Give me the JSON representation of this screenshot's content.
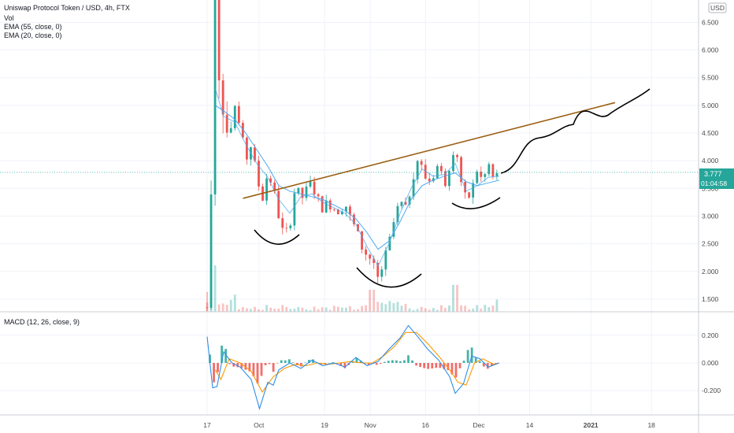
{
  "header": {
    "title": "Uniswap Protocol Token / USD, 4h, FTX",
    "indicators": [
      "Vol",
      "EMA (55, close, 0)",
      "EMA (20, close, 0)"
    ],
    "currency": "USD"
  },
  "macd_panel": {
    "label": "MACD (12, 26, close, 9)"
  },
  "price_badge": {
    "price": "3.777",
    "countdown": "01:04:58"
  },
  "colors": {
    "up": "#26a69a",
    "down": "#ef5350",
    "ema": "#4aa8f0",
    "trendline": "#9a5f12",
    "drawing": "#000000",
    "macd": "#2f8ee8",
    "signal": "#ff9800",
    "badge": "#26a69a",
    "grid": "#f0f3fa"
  },
  "chart_data": [
    {
      "type": "line",
      "title": "Uniswap Protocol Token / USD, 4h, FTX",
      "x_ticks": [
        "17",
        "Oct",
        "19",
        "Nov",
        "16",
        "Dec",
        "14",
        "2021",
        "18"
      ],
      "y_ticks": [
        "1.500",
        "2.000",
        "2.500",
        "3.000",
        "3.500",
        "4.000",
        "4.500",
        "5.000",
        "5.500",
        "6.000",
        "6.500"
      ],
      "ylim": [
        1.3,
        6.9
      ],
      "grid": true,
      "last_price": 3.777,
      "price_path": [
        [
          0,
          1.35
        ],
        [
          0.5,
          2.6
        ],
        [
          1,
          4.5
        ],
        [
          1.4,
          6.9
        ],
        [
          2,
          5.8
        ],
        [
          3,
          4.7
        ],
        [
          4,
          4.3
        ],
        [
          5,
          4.9
        ],
        [
          6,
          4.6
        ],
        [
          7,
          4.0
        ],
        [
          8,
          4.3
        ],
        [
          9,
          3.7
        ],
        [
          10,
          3.3
        ],
        [
          11,
          3.8
        ],
        [
          12,
          3.5
        ],
        [
          13,
          3.0
        ],
        [
          14,
          2.6
        ],
        [
          15,
          2.85
        ],
        [
          16,
          3.55
        ],
        [
          17,
          3.3
        ],
        [
          18,
          3.45
        ],
        [
          19,
          3.6
        ],
        [
          20,
          3.3
        ],
        [
          21,
          3.15
        ],
        [
          22,
          3.25
        ],
        [
          23,
          3.15
        ],
        [
          24,
          3.1
        ],
        [
          25,
          3.25
        ],
        [
          26,
          2.95
        ],
        [
          27,
          2.75
        ],
        [
          28,
          2.45
        ],
        [
          29,
          2.3
        ],
        [
          30,
          2.2
        ],
        [
          31,
          1.85
        ],
        [
          32,
          2.15
        ],
        [
          33,
          2.5
        ],
        [
          34,
          2.95
        ],
        [
          35,
          3.25
        ],
        [
          36,
          3.1
        ],
        [
          37,
          3.55
        ],
        [
          38,
          4.05
        ],
        [
          39,
          3.85
        ],
        [
          40,
          3.6
        ],
        [
          41,
          3.75
        ],
        [
          42,
          3.95
        ],
        [
          43,
          3.55
        ],
        [
          44,
          3.95
        ],
        [
          45,
          4.35
        ],
        [
          46,
          3.65
        ],
        [
          47,
          3.25
        ],
        [
          48,
          3.45
        ],
        [
          49,
          3.85
        ],
        [
          50,
          3.6
        ],
        [
          51,
          3.95
        ],
        [
          52,
          3.65
        ],
        [
          53,
          3.78
        ]
      ],
      "ema55_path": [
        [
          1.5,
          5.0
        ],
        [
          3,
          4.9
        ],
        [
          5,
          4.75
        ],
        [
          7,
          4.5
        ],
        [
          9,
          4.2
        ],
        [
          11,
          3.9
        ],
        [
          13,
          3.55
        ],
        [
          15,
          3.45
        ],
        [
          17,
          3.4
        ],
        [
          19,
          3.35
        ],
        [
          21,
          3.3
        ],
        [
          23,
          3.2
        ],
        [
          25,
          3.1
        ],
        [
          27,
          2.95
        ],
        [
          29,
          2.7
        ],
        [
          31,
          2.4
        ],
        [
          33,
          2.55
        ],
        [
          35,
          2.9
        ],
        [
          37,
          3.3
        ],
        [
          39,
          3.55
        ],
        [
          41,
          3.65
        ],
        [
          43,
          3.72
        ],
        [
          45,
          3.78
        ],
        [
          47,
          3.62
        ],
        [
          49,
          3.55
        ],
        [
          51,
          3.6
        ],
        [
          53,
          3.65
        ]
      ],
      "ema20_path": [
        [
          1.5,
          5.3
        ],
        [
          3,
          4.8
        ],
        [
          5,
          4.7
        ],
        [
          7,
          4.3
        ],
        [
          9,
          3.95
        ],
        [
          11,
          3.7
        ],
        [
          13,
          3.3
        ],
        [
          15,
          3.05
        ],
        [
          17,
          3.35
        ],
        [
          19,
          3.4
        ],
        [
          21,
          3.25
        ],
        [
          23,
          3.15
        ],
        [
          25,
          3.05
        ],
        [
          27,
          2.85
        ],
        [
          29,
          2.45
        ],
        [
          31,
          2.1
        ],
        [
          33,
          2.5
        ],
        [
          35,
          3.05
        ],
        [
          37,
          3.5
        ],
        [
          39,
          3.85
        ],
        [
          41,
          3.72
        ],
        [
          43,
          3.75
        ],
        [
          45,
          3.95
        ],
        [
          47,
          3.45
        ],
        [
          49,
          3.55
        ],
        [
          51,
          3.7
        ],
        [
          53,
          3.72
        ]
      ],
      "trendline": [
        [
          6.5,
          3.32
        ],
        [
          74,
          5.05
        ]
      ],
      "volume_spikes": [
        [
          1.2,
          0.95
        ],
        [
          5,
          0.35
        ],
        [
          30,
          0.45
        ],
        [
          45,
          0.55
        ],
        [
          53,
          0.25
        ]
      ]
    },
    {
      "type": "line",
      "title": "MACD (12, 26, close, 9)",
      "y_ticks": [
        "0.200",
        "0.000",
        "-0.200"
      ],
      "ylim": [
        -0.36,
        0.34
      ],
      "macd_path": [
        [
          0,
          0.19
        ],
        [
          1,
          -0.18
        ],
        [
          1.8,
          -0.17
        ],
        [
          3,
          0.08
        ],
        [
          4.5,
          0.0
        ],
        [
          6,
          -0.03
        ],
        [
          8,
          -0.12
        ],
        [
          9.5,
          -0.33
        ],
        [
          11,
          -0.14
        ],
        [
          12,
          -0.16
        ],
        [
          13,
          -0.05
        ],
        [
          15,
          0.0
        ],
        [
          17,
          -0.04
        ],
        [
          19,
          0.02
        ],
        [
          21,
          -0.02
        ],
        [
          23,
          0.0
        ],
        [
          25,
          -0.03
        ],
        [
          27,
          0.04
        ],
        [
          29,
          -0.02
        ],
        [
          31,
          0.01
        ],
        [
          33,
          0.1
        ],
        [
          35,
          0.18
        ],
        [
          36.5,
          0.27
        ],
        [
          38,
          0.2
        ],
        [
          40,
          0.1
        ],
        [
          42,
          0.02
        ],
        [
          44,
          -0.1
        ],
        [
          45,
          -0.22
        ],
        [
          46.5,
          -0.15
        ],
        [
          48,
          0.05
        ],
        [
          49.5,
          0.03
        ],
        [
          51,
          -0.03
        ],
        [
          53,
          0.0
        ]
      ],
      "signal_path": [
        [
          1.5,
          -0.05
        ],
        [
          2.5,
          -0.12
        ],
        [
          4,
          0.03
        ],
        [
          6,
          0.0
        ],
        [
          8,
          -0.06
        ],
        [
          10,
          -0.21
        ],
        [
          12,
          -0.1
        ],
        [
          14,
          -0.04
        ],
        [
          16,
          -0.01
        ],
        [
          18,
          -0.02
        ],
        [
          20,
          0.0
        ],
        [
          22,
          -0.01
        ],
        [
          24,
          0.0
        ],
        [
          26,
          0.01
        ],
        [
          28,
          0.0
        ],
        [
          30,
          0.0
        ],
        [
          32,
          0.05
        ],
        [
          34,
          0.12
        ],
        [
          36,
          0.22
        ],
        [
          38,
          0.22
        ],
        [
          40,
          0.14
        ],
        [
          42,
          0.05
        ],
        [
          44,
          -0.05
        ],
        [
          45.5,
          -0.14
        ],
        [
          47,
          -0.16
        ],
        [
          48.5,
          0.0
        ],
        [
          50,
          0.03
        ],
        [
          52,
          -0.01
        ],
        [
          53,
          0.0
        ]
      ]
    }
  ]
}
